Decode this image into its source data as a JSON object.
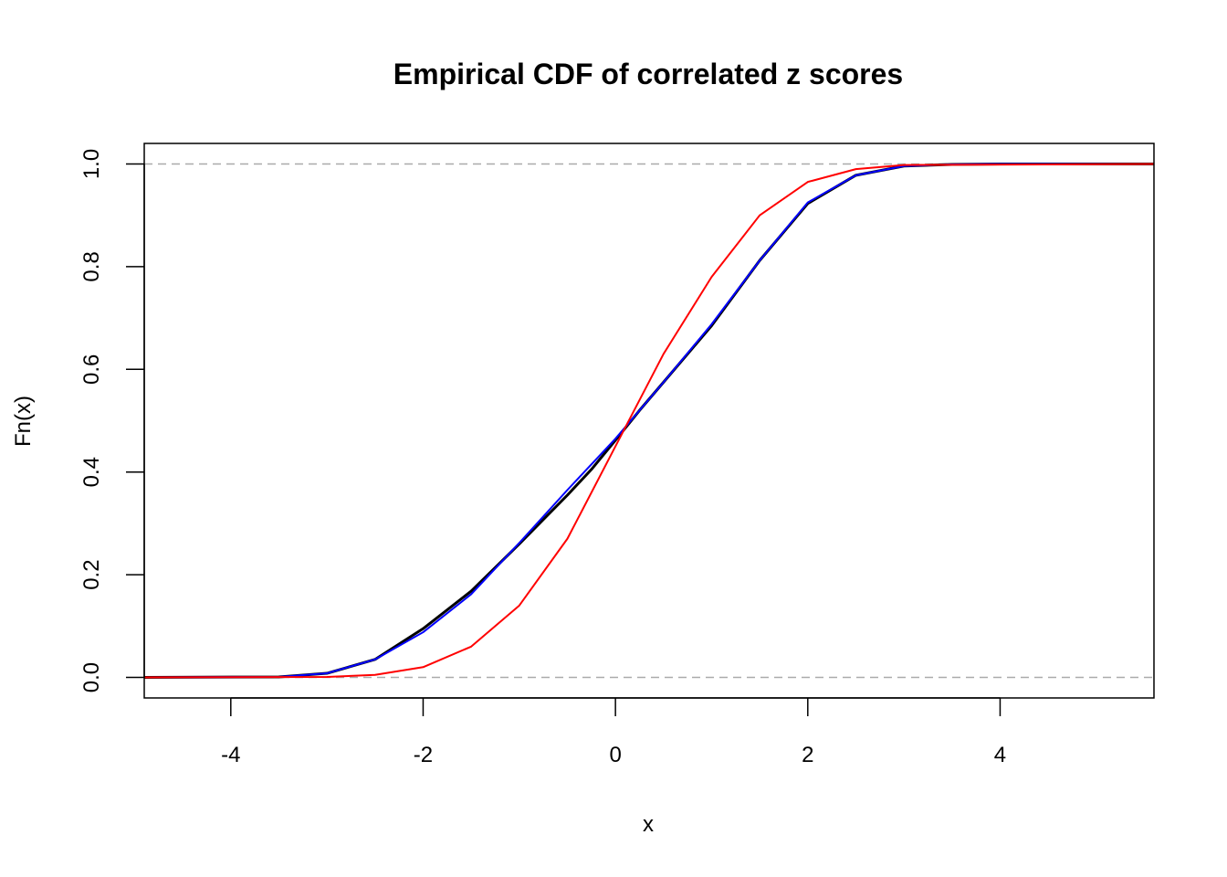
{
  "chart_data": {
    "type": "line",
    "title": "Empirical CDF of correlated z scores",
    "xlabel": "x",
    "ylabel": "Fn(x)",
    "xlim": [
      -4.9,
      5.6
    ],
    "ylim": [
      -0.04,
      1.04
    ],
    "x_ticks": [
      -4,
      -2,
      0,
      2,
      4
    ],
    "x_tick_labels": [
      "-4",
      "-2",
      "0",
      "2",
      "4"
    ],
    "y_ticks": [
      0.0,
      0.2,
      0.4,
      0.6,
      0.8,
      1.0
    ],
    "y_tick_labels": [
      "0.0",
      "0.2",
      "0.4",
      "0.6",
      "0.8",
      "1.0"
    ],
    "reference_lines": [
      0,
      1
    ],
    "reference_color": "#aaaaaa",
    "grid": false,
    "legend": "none",
    "series": [
      {
        "color": "#000000",
        "x": [
          -4.9,
          -3.5,
          -3.0,
          -2.5,
          -2.0,
          -1.5,
          -1.0,
          -0.5,
          -0.25,
          0.0,
          0.25,
          0.5,
          1.0,
          1.5,
          2.0,
          2.5,
          3.0,
          3.5,
          4.0,
          5.6
        ],
        "y": [
          0.0,
          0.001,
          0.008,
          0.035,
          0.095,
          0.168,
          0.26,
          0.355,
          0.405,
          0.462,
          0.52,
          0.575,
          0.685,
          0.812,
          0.923,
          0.978,
          0.996,
          0.999,
          1.0,
          1.0
        ]
      },
      {
        "color": "#0000ff",
        "x": [
          -4.9,
          -3.5,
          -3.0,
          -2.5,
          -2.0,
          -1.5,
          -1.0,
          -0.5,
          -0.25,
          0.0,
          0.25,
          0.5,
          1.0,
          1.5,
          2.0,
          2.5,
          3.0,
          3.5,
          4.0,
          5.6
        ],
        "y": [
          0.0,
          0.001,
          0.008,
          0.035,
          0.088,
          0.162,
          0.262,
          0.365,
          0.415,
          0.465,
          0.52,
          0.575,
          0.688,
          0.812,
          0.925,
          0.978,
          0.996,
          0.999,
          1.0,
          1.0
        ]
      },
      {
        "color": "#ff0000",
        "x": [
          -4.9,
          -3.0,
          -2.5,
          -2.0,
          -1.5,
          -1.0,
          -0.5,
          0.0,
          0.5,
          1.0,
          1.5,
          2.0,
          2.5,
          3.0,
          5.6
        ],
        "y": [
          0.0,
          0.001,
          0.005,
          0.02,
          0.06,
          0.14,
          0.27,
          0.45,
          0.63,
          0.78,
          0.9,
          0.965,
          0.99,
          0.998,
          1.0
        ]
      }
    ]
  }
}
